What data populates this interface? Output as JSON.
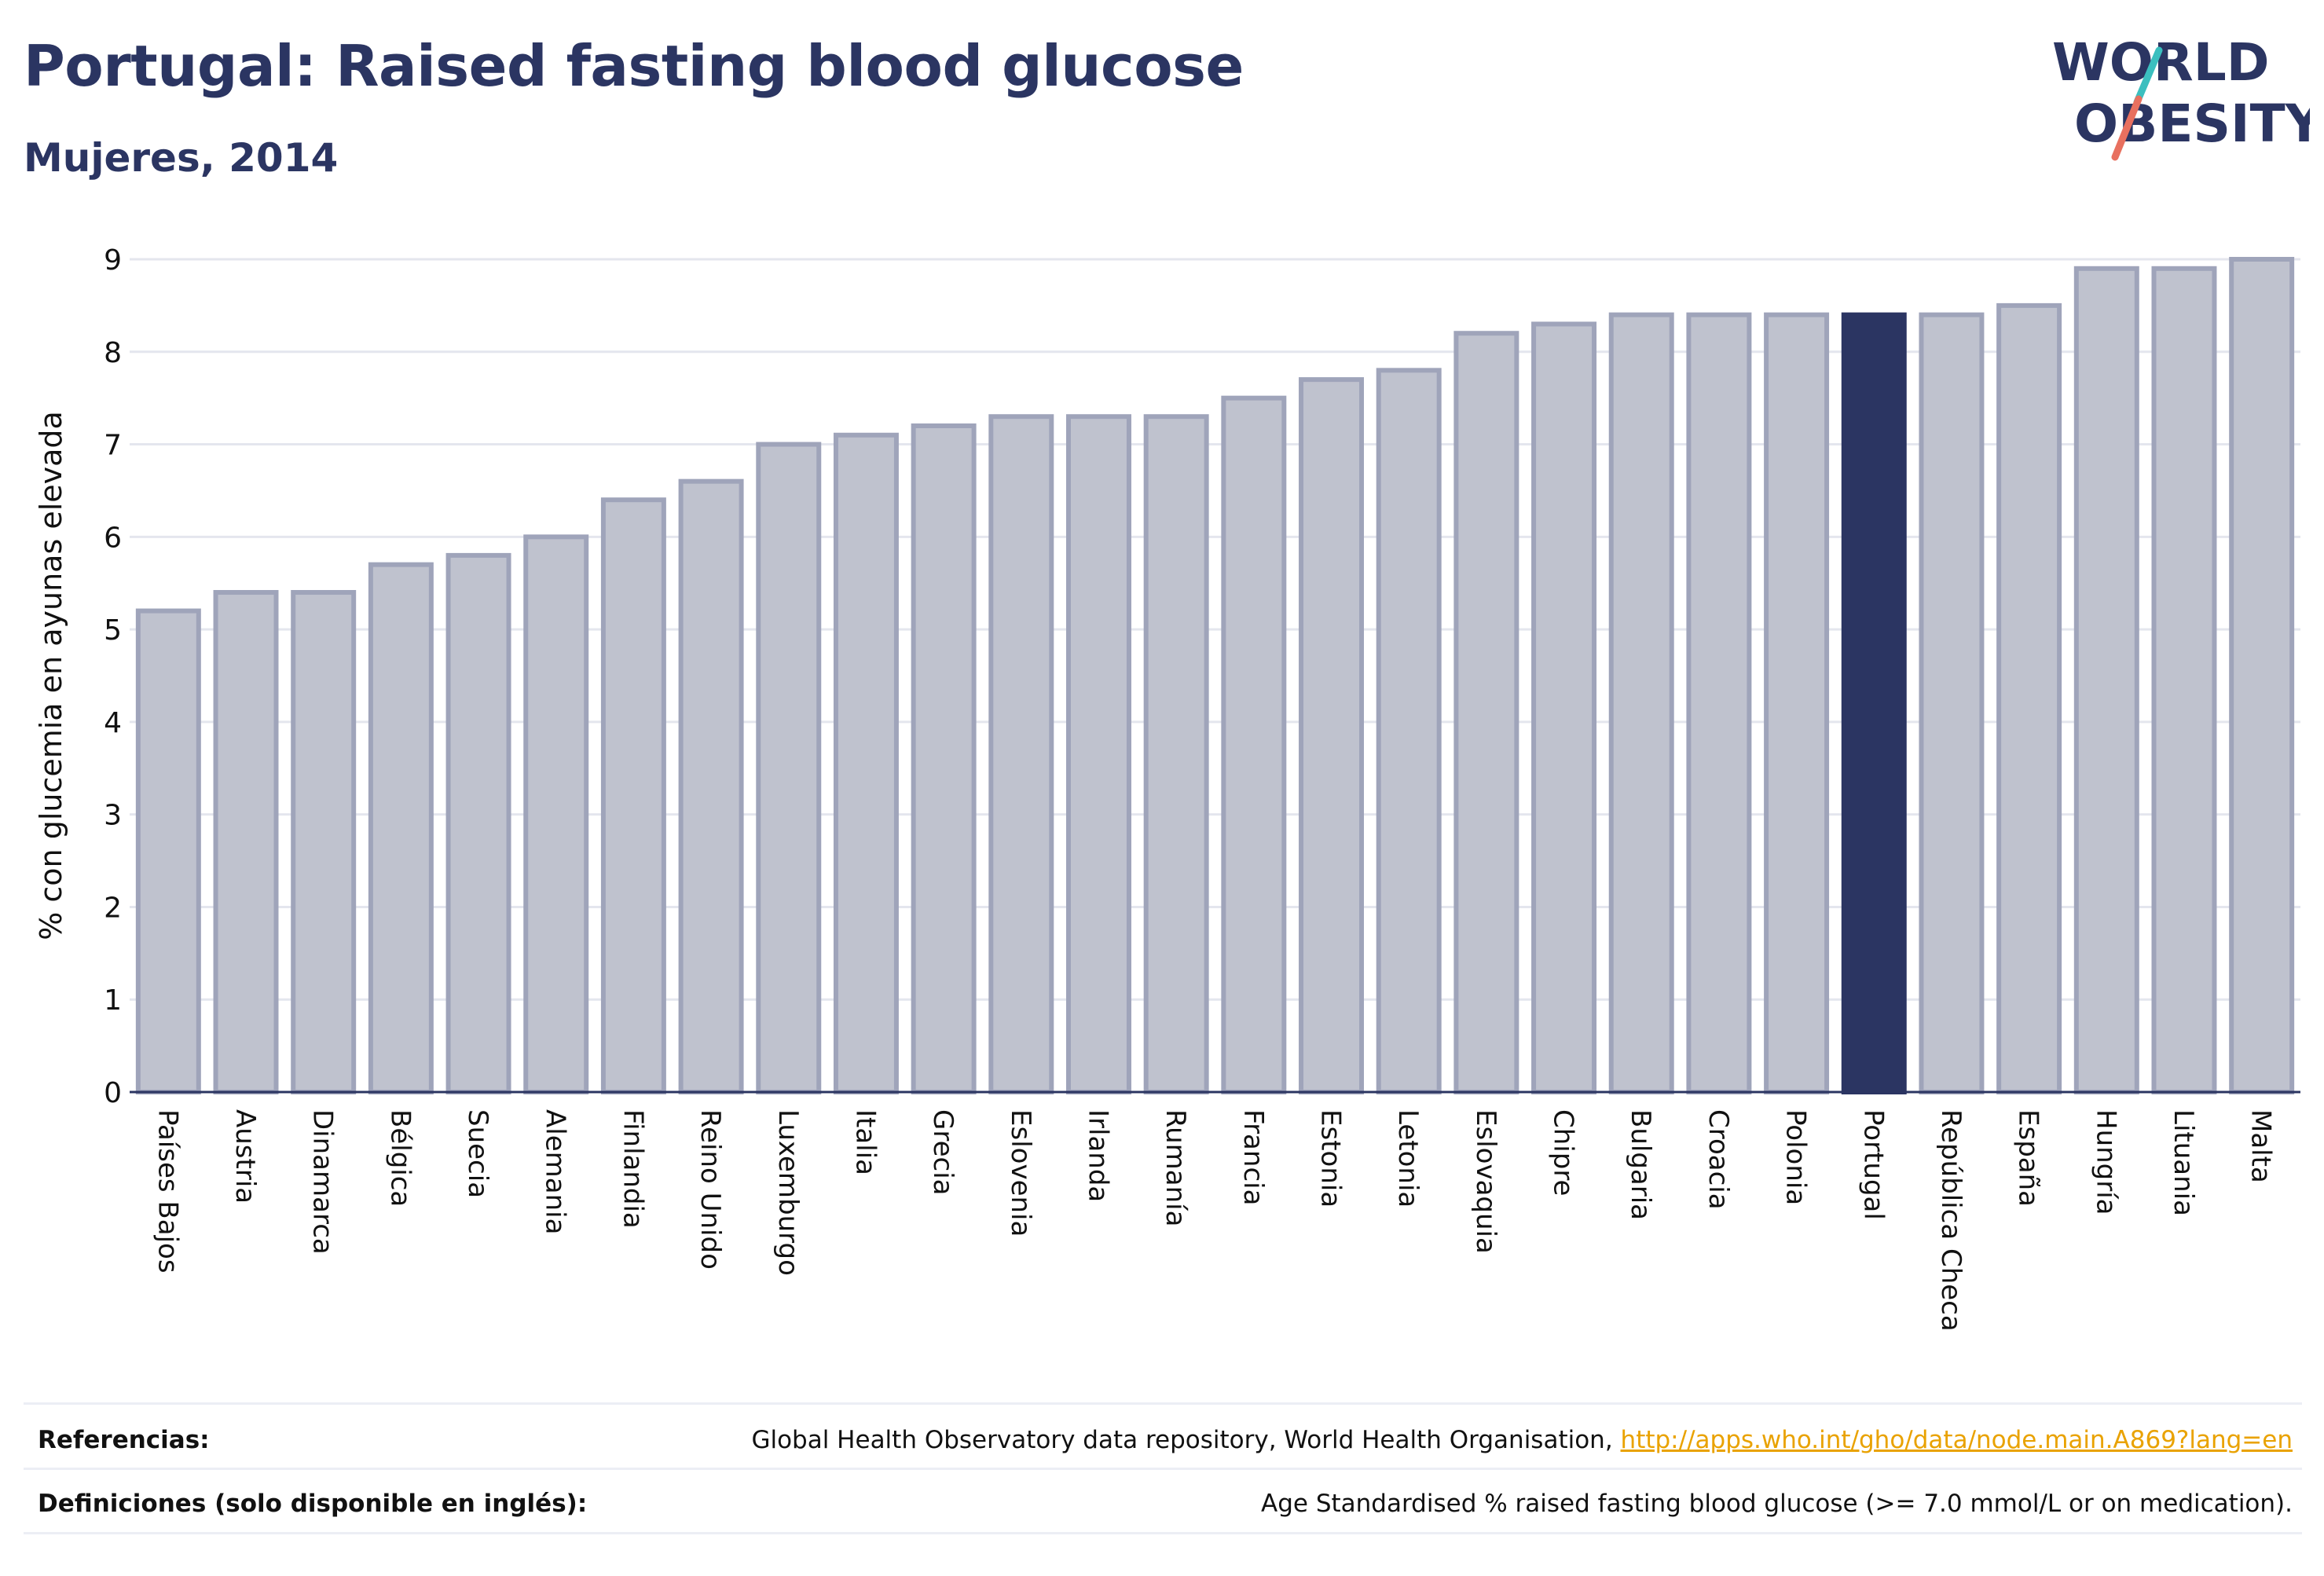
{
  "header": {
    "title": "Portugal: Raised fasting blood glucose",
    "subtitle": "Mujeres, 2014"
  },
  "logo": {
    "line1": "WORLD",
    "line2": "OBESITY",
    "colors": {
      "text": "#2b3562",
      "slash_top": "#3bbfbf",
      "slash_bottom": "#e8705f"
    }
  },
  "chart_data": {
    "type": "bar",
    "ylabel": "% con glucemia en ayunas elevada",
    "xlabel": "",
    "ylim": [
      0,
      9
    ],
    "yticks": [
      0,
      1,
      2,
      3,
      4,
      5,
      6,
      7,
      8,
      9
    ],
    "grid": true,
    "highlight": "Portugal",
    "colors": {
      "bar": "#bfc2ce",
      "bar_border": "#9fa4ba",
      "highlight": "#2b3562"
    },
    "categories": [
      "Países Bajos",
      "Austria",
      "Dinamarca",
      "Bélgica",
      "Suecia",
      "Alemania",
      "Finlandia",
      "Reino Unido",
      "Luxemburgo",
      "Italia",
      "Grecia",
      "Eslovenia",
      "Irlanda",
      "Rumanía",
      "Francia",
      "Estonia",
      "Letonia",
      "Eslovaquia",
      "Chipre",
      "Bulgaria",
      "Croacia",
      "Polonia",
      "Portugal",
      "República Checa",
      "España",
      "Hungría",
      "Lituania",
      "Malta"
    ],
    "values": [
      5.2,
      5.4,
      5.4,
      5.7,
      5.8,
      6.0,
      6.4,
      6.6,
      7.0,
      7.1,
      7.2,
      7.3,
      7.3,
      7.3,
      7.5,
      7.7,
      7.8,
      8.2,
      8.3,
      8.4,
      8.4,
      8.4,
      8.4,
      8.4,
      8.5,
      8.9,
      8.9,
      9.0
    ]
  },
  "footer": {
    "references_label": "Referencias:",
    "references_text": "Global Health Observatory data repository, World Health Organisation, ",
    "references_link": "http://apps.who.int/gho/data/node.main.A869?lang=en",
    "definitions_label": "Definiciones (solo disponible en inglés):",
    "definitions_text": "Age Standardised % raised fasting blood glucose (>= 7.0 mmol/L or on medication)."
  }
}
